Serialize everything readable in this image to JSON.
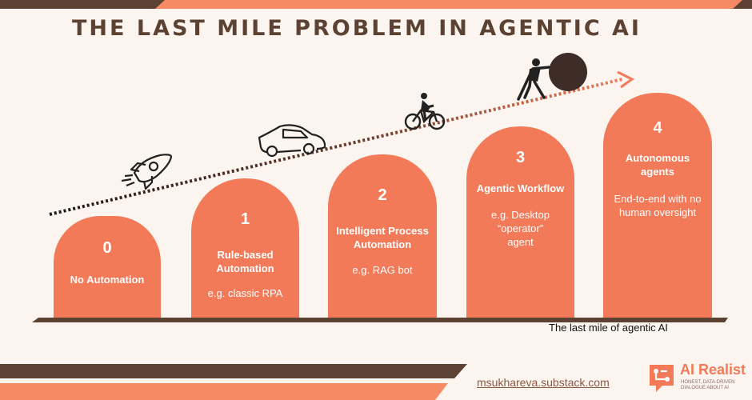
{
  "title": "THE LAST MILE PROBLEM IN AGENTIC AI",
  "stages": [
    {
      "number": "0",
      "label": "No Automation",
      "example": ""
    },
    {
      "number": "1",
      "label": "Rule-based Automation",
      "example": "e.g. classic RPA"
    },
    {
      "number": "2",
      "label": "Intelligent Process Automation",
      "example": "e.g. RAG bot"
    },
    {
      "number": "3",
      "label": "Agentic Workflow",
      "example": "e.g. Desktop “operator” agent"
    },
    {
      "number": "4",
      "label": "Autonomous agents",
      "example": "End-to-end with no human oversight"
    }
  ],
  "caption": "The last mile of agentic AI",
  "footer": {
    "link": "msukhareva.substack.com",
    "brand_name": "AI Realist",
    "brand_tagline": "HONEST, DATA-DRIVEN DIALOGUE ABOUT AI"
  },
  "icons": [
    "rocket-icon",
    "car-icon",
    "cyclist-icon",
    "boulder-pusher-icon",
    "arrow-icon"
  ],
  "colors": {
    "background": "#fbf4ef",
    "accent": "#f27a58",
    "dark": "#5b4232",
    "stripe_orange": "#f58a65"
  }
}
